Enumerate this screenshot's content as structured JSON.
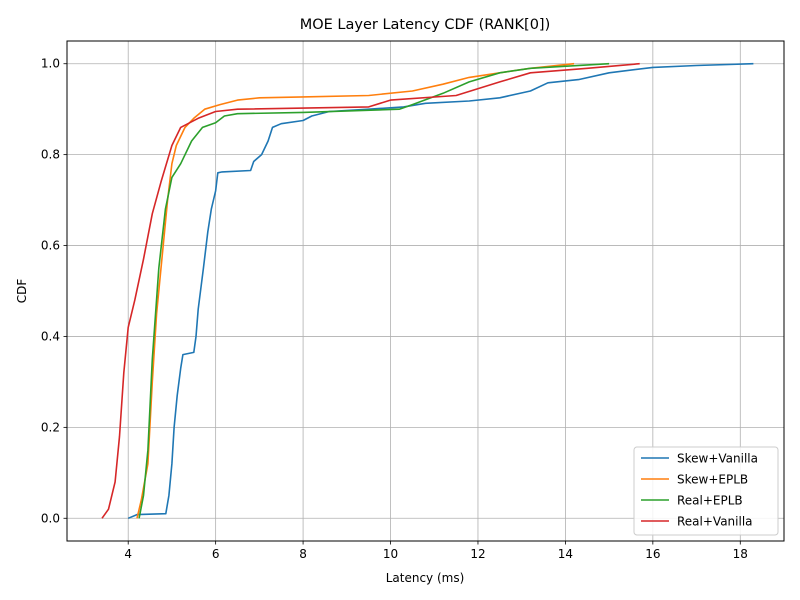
{
  "chart_data": {
    "type": "line",
    "title": "MOE Layer Latency CDF (RANK[0])",
    "xlabel": "Latency (ms)",
    "ylabel": "CDF",
    "xlim": [
      2.6,
      19.0
    ],
    "ylim": [
      -0.05,
      1.05
    ],
    "xticks": [
      2,
      4,
      6,
      8,
      10,
      12,
      14,
      16,
      18
    ],
    "yticks": [
      0.0,
      0.2,
      0.4,
      0.6,
      0.8,
      1.0
    ],
    "xtick_labels": [
      "2",
      "4",
      "6",
      "8",
      "10",
      "12",
      "14",
      "16",
      "18"
    ],
    "ytick_labels": [
      "0.0",
      "0.2",
      "0.4",
      "0.6",
      "0.8",
      "1.0"
    ],
    "grid": true,
    "legend_position": "lower-right",
    "series": [
      {
        "name": "Skew+Vanilla",
        "color": "#1f77b4",
        "points": [
          [
            4.0,
            0.0
          ],
          [
            4.2,
            0.008
          ],
          [
            4.86,
            0.01
          ],
          [
            4.93,
            0.05
          ],
          [
            5.0,
            0.12
          ],
          [
            5.05,
            0.2
          ],
          [
            5.12,
            0.27
          ],
          [
            5.2,
            0.33
          ],
          [
            5.25,
            0.36
          ],
          [
            5.5,
            0.365
          ],
          [
            5.55,
            0.4
          ],
          [
            5.6,
            0.46
          ],
          [
            5.72,
            0.55
          ],
          [
            5.82,
            0.63
          ],
          [
            5.9,
            0.68
          ],
          [
            6.0,
            0.72
          ],
          [
            6.05,
            0.76
          ],
          [
            6.15,
            0.762
          ],
          [
            6.8,
            0.765
          ],
          [
            6.87,
            0.785
          ],
          [
            7.05,
            0.8
          ],
          [
            7.2,
            0.83
          ],
          [
            7.3,
            0.86
          ],
          [
            7.5,
            0.868
          ],
          [
            8.0,
            0.875
          ],
          [
            8.2,
            0.885
          ],
          [
            8.6,
            0.895
          ],
          [
            9.5,
            0.9
          ],
          [
            10.3,
            0.905
          ],
          [
            10.8,
            0.913
          ],
          [
            11.8,
            0.918
          ],
          [
            12.5,
            0.925
          ],
          [
            13.2,
            0.94
          ],
          [
            13.6,
            0.958
          ],
          [
            14.3,
            0.965
          ],
          [
            15.0,
            0.98
          ],
          [
            16.0,
            0.992
          ],
          [
            17.0,
            0.996
          ],
          [
            18.3,
            1.0
          ]
        ]
      },
      {
        "name": "Skew+EPLB",
        "color": "#ff7f0e",
        "points": [
          [
            4.2,
            0.0
          ],
          [
            4.3,
            0.04
          ],
          [
            4.45,
            0.12
          ],
          [
            4.55,
            0.3
          ],
          [
            4.65,
            0.45
          ],
          [
            4.8,
            0.6
          ],
          [
            4.9,
            0.7
          ],
          [
            5.0,
            0.78
          ],
          [
            5.1,
            0.82
          ],
          [
            5.3,
            0.86
          ],
          [
            5.5,
            0.88
          ],
          [
            5.75,
            0.9
          ],
          [
            6.1,
            0.91
          ],
          [
            6.5,
            0.92
          ],
          [
            7.0,
            0.925
          ],
          [
            8.0,
            0.927
          ],
          [
            9.5,
            0.93
          ],
          [
            10.5,
            0.94
          ],
          [
            11.2,
            0.955
          ],
          [
            11.8,
            0.97
          ],
          [
            12.5,
            0.98
          ],
          [
            13.2,
            0.99
          ],
          [
            14.2,
            1.0
          ]
        ]
      },
      {
        "name": "Real+EPLB",
        "color": "#2ca02c",
        "points": [
          [
            4.25,
            0.0
          ],
          [
            4.35,
            0.05
          ],
          [
            4.45,
            0.15
          ],
          [
            4.55,
            0.35
          ],
          [
            4.7,
            0.55
          ],
          [
            4.85,
            0.68
          ],
          [
            5.0,
            0.75
          ],
          [
            5.2,
            0.78
          ],
          [
            5.45,
            0.83
          ],
          [
            5.7,
            0.86
          ],
          [
            6.0,
            0.87
          ],
          [
            6.2,
            0.885
          ],
          [
            6.5,
            0.89
          ],
          [
            8.0,
            0.893
          ],
          [
            10.2,
            0.9
          ],
          [
            10.5,
            0.91
          ],
          [
            11.2,
            0.935
          ],
          [
            11.8,
            0.96
          ],
          [
            12.5,
            0.98
          ],
          [
            13.2,
            0.99
          ],
          [
            15.0,
            1.0
          ]
        ]
      },
      {
        "name": "Real+Vanilla",
        "color": "#d62728",
        "points": [
          [
            3.4,
            0.0
          ],
          [
            3.55,
            0.02
          ],
          [
            3.7,
            0.08
          ],
          [
            3.8,
            0.18
          ],
          [
            3.9,
            0.32
          ],
          [
            4.0,
            0.42
          ],
          [
            4.15,
            0.48
          ],
          [
            4.35,
            0.57
          ],
          [
            4.55,
            0.67
          ],
          [
            4.75,
            0.74
          ],
          [
            5.0,
            0.82
          ],
          [
            5.2,
            0.86
          ],
          [
            5.6,
            0.88
          ],
          [
            6.0,
            0.895
          ],
          [
            6.5,
            0.9
          ],
          [
            9.5,
            0.905
          ],
          [
            10.0,
            0.92
          ],
          [
            11.5,
            0.93
          ],
          [
            12.5,
            0.96
          ],
          [
            13.2,
            0.98
          ],
          [
            14.5,
            0.99
          ],
          [
            15.7,
            1.0
          ]
        ]
      }
    ]
  }
}
